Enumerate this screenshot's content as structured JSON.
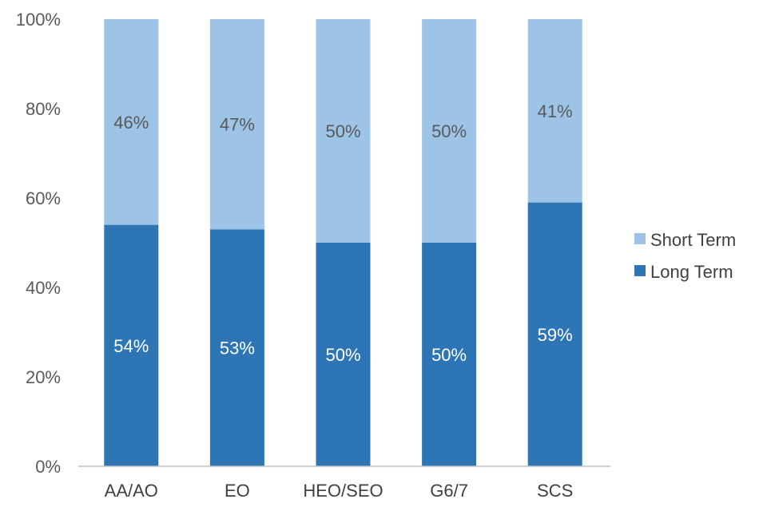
{
  "chart_data": {
    "type": "bar",
    "stacked": true,
    "normalized": true,
    "categories": [
      "AA/AO",
      "EO",
      "HEO/SEO",
      "G6/7",
      "SCS"
    ],
    "series": [
      {
        "name": "Long Term",
        "values": [
          54,
          53,
          50,
          50,
          59
        ],
        "labels": [
          "54%",
          "53%",
          "50%",
          "50%",
          "59%"
        ],
        "color": "#2e75b6"
      },
      {
        "name": "Short Term",
        "values": [
          46,
          47,
          50,
          50,
          41
        ],
        "labels": [
          "46%",
          "47%",
          "50%",
          "50%",
          "41%"
        ],
        "color": "#9dc3e6"
      }
    ],
    "ylim": [
      0,
      100
    ],
    "yticks": [
      "0%",
      "20%",
      "40%",
      "60%",
      "80%",
      "100%"
    ],
    "grid": false,
    "legend_position": "right",
    "legend": [
      "Short Term",
      "Long Term"
    ]
  }
}
